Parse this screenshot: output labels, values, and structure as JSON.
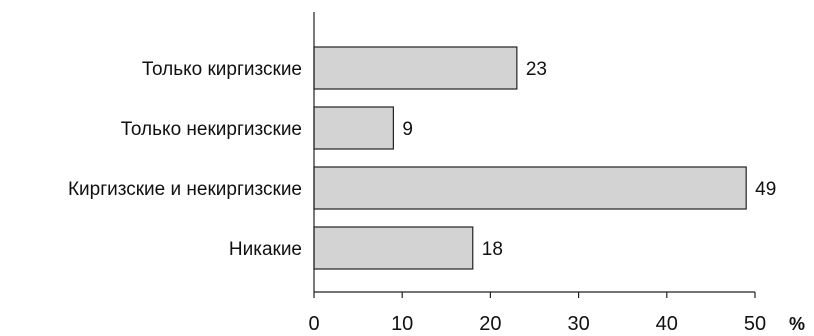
{
  "chart_data": {
    "type": "bar",
    "orientation": "horizontal",
    "categories": [
      "Только киргизские",
      "Только некиргизские",
      "Киргизские и некиргизские",
      "Никакие"
    ],
    "values": [
      23,
      9,
      49,
      18
    ],
    "data_labels": [
      "23",
      "9",
      "49",
      "18"
    ],
    "xlim": [
      0,
      50
    ],
    "xticks": [
      0,
      10,
      20,
      30,
      40,
      50
    ],
    "xtick_labels": [
      "0",
      "10",
      "20",
      "30",
      "40",
      "50"
    ],
    "xunit": "%",
    "title": "",
    "xlabel": "",
    "ylabel": "",
    "grid": false,
    "legend": "none",
    "colors": {
      "bar_fill": "#d3d3d3",
      "bar_stroke": "#222222",
      "axis": "#222222",
      "text": "#111111"
    }
  }
}
